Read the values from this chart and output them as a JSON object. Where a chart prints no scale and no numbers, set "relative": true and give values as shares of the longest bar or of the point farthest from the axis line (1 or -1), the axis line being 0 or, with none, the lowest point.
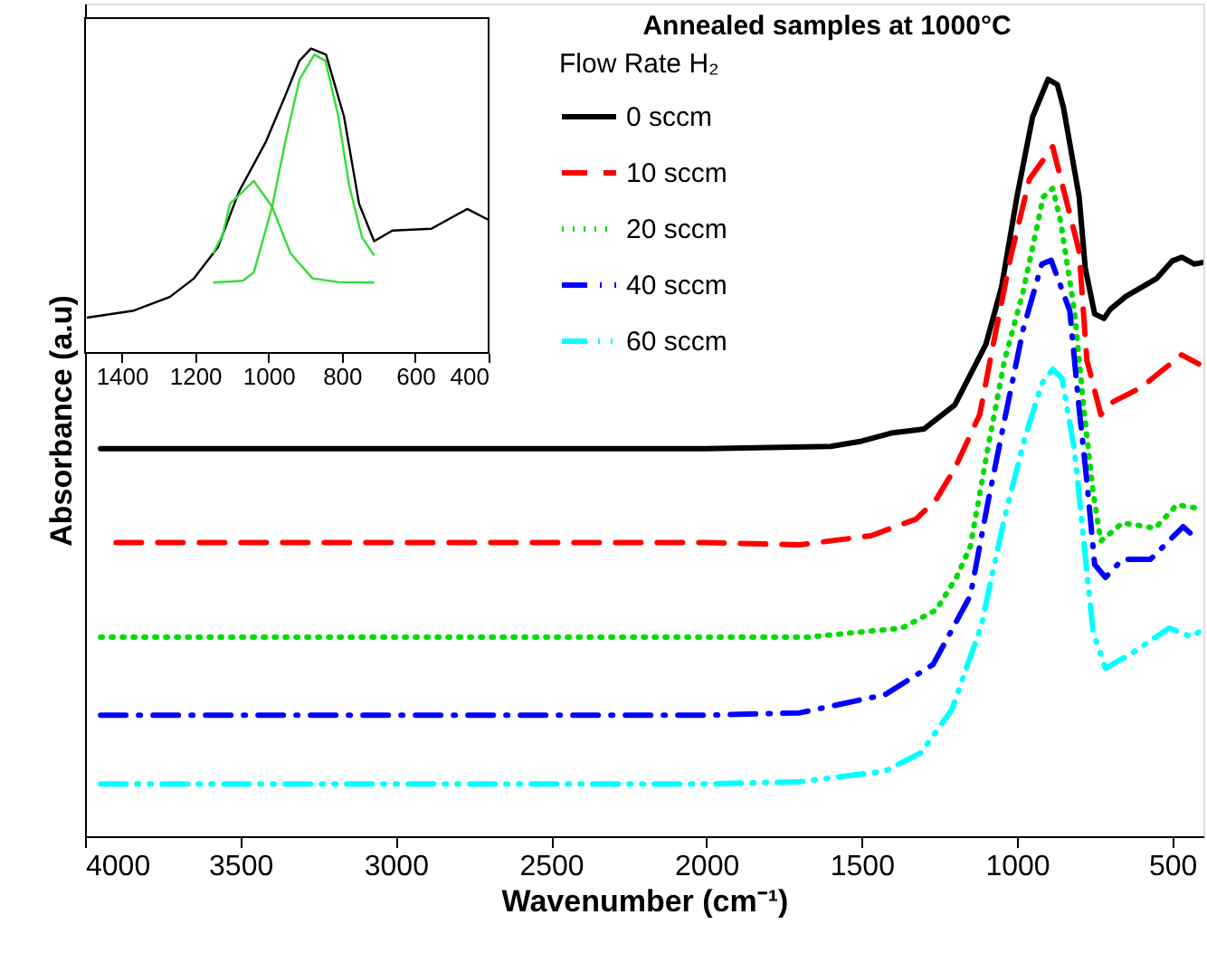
{
  "chart_data": [
    {
      "type": "line",
      "title": "Annealed samples at 1000°C",
      "xlabel": "Wavenumber (cm⁻¹)",
      "ylabel": "Absorbance (a.u)",
      "legend_title": "Flow Rate H₂",
      "legend": "top right",
      "relative": true,
      "tick_labels": "x",
      "xlim": [
        4000,
        400
      ],
      "xticks": [
        4000,
        3500,
        3000,
        2500,
        2000,
        1500,
        1000,
        500
      ],
      "grid": false,
      "series": [
        {
          "name": "0 sccm",
          "color": "#000000",
          "line_style": "solid",
          "x": [
            3950,
            3000,
            2000,
            1600,
            1500,
            1400,
            1300,
            1200,
            1100,
            1050,
            1000,
            950,
            900,
            870,
            850,
            800,
            780,
            750,
            720,
            700,
            650,
            600,
            550,
            500,
            470,
            430,
            400
          ],
          "values": [
            0.512,
            0.512,
            0.512,
            0.515,
            0.522,
            0.533,
            0.538,
            0.57,
            0.65,
            0.725,
            0.845,
            0.95,
            1.0,
            0.993,
            0.962,
            0.845,
            0.75,
            0.69,
            0.684,
            0.696,
            0.713,
            0.725,
            0.737,
            0.76,
            0.765,
            0.756,
            0.758
          ]
        },
        {
          "name": "10 sccm",
          "color": "#ff0000",
          "line_style": "dashed",
          "x": [
            3900,
            3000,
            2000,
            1700,
            1470,
            1325,
            1260,
            1200,
            1120,
            1075,
            1020,
            960,
            885,
            800,
            775,
            730,
            690,
            600,
            470,
            415
          ],
          "values": [
            0.388,
            0.388,
            0.388,
            0.385,
            0.397,
            0.419,
            0.445,
            0.486,
            0.557,
            0.653,
            0.766,
            0.868,
            0.911,
            0.773,
            0.629,
            0.557,
            0.574,
            0.593,
            0.636,
            0.624
          ]
        },
        {
          "name": "20 sccm",
          "color": "#00dd00",
          "line_style": "dotted",
          "x": [
            3950,
            3000,
            2000,
            1675,
            1370,
            1260,
            1195,
            1150,
            1095,
            1040,
            980,
            915,
            885,
            860,
            815,
            785,
            755,
            730,
            660,
            555,
            485,
            415
          ],
          "values": [
            0.263,
            0.263,
            0.263,
            0.263,
            0.275,
            0.299,
            0.342,
            0.383,
            0.51,
            0.629,
            0.72,
            0.845,
            0.856,
            0.813,
            0.694,
            0.565,
            0.455,
            0.39,
            0.414,
            0.407,
            0.438,
            0.433
          ]
        },
        {
          "name": "40 sccm",
          "color": "#0000ff",
          "line_style": "dashdot",
          "x": [
            3950,
            3000,
            2000,
            1700,
            1425,
            1270,
            1150,
            1095,
            1040,
            980,
            920,
            890,
            830,
            800,
            775,
            750,
            715,
            660,
            570,
            465,
            415
          ],
          "values": [
            0.16,
            0.16,
            0.16,
            0.163,
            0.187,
            0.227,
            0.318,
            0.438,
            0.55,
            0.67,
            0.756,
            0.761,
            0.694,
            0.565,
            0.469,
            0.359,
            0.342,
            0.366,
            0.366,
            0.409,
            0.39
          ]
        },
        {
          "name": "60 sccm",
          "color": "#00ffff",
          "line_style": "dashdotdot",
          "x": [
            3950,
            3000,
            2000,
            1700,
            1425,
            1310,
            1210,
            1115,
            1040,
            975,
            920,
            885,
            855,
            815,
            785,
            755,
            715,
            630,
            510,
            435,
            415
          ],
          "values": [
            0.069,
            0.069,
            0.069,
            0.072,
            0.086,
            0.11,
            0.167,
            0.278,
            0.421,
            0.526,
            0.598,
            0.617,
            0.605,
            0.51,
            0.39,
            0.27,
            0.222,
            0.242,
            0.275,
            0.263,
            0.27
          ]
        }
      ]
    },
    {
      "type": "line",
      "relative": true,
      "tick_labels": "x",
      "xlim": [
        1500,
        400
      ],
      "xticks": [
        1400,
        1200,
        1000,
        800,
        600,
        400
      ],
      "grid": false,
      "series": [
        {
          "color": "#000000",
          "x": [
            1495,
            1367,
            1269,
            1203,
            1138,
            1080,
            1007,
            957,
            916,
            884,
            843,
            794,
            753,
            712,
            662,
            556,
            458,
            400
          ],
          "values": [
            0.116,
            0.139,
            0.184,
            0.245,
            0.347,
            0.531,
            0.694,
            0.837,
            0.959,
            1.0,
            0.98,
            0.776,
            0.49,
            0.367,
            0.402,
            0.408,
            0.473,
            0.437
          ]
        },
        {
          "color": "#33dd33",
          "x": [
            1151,
            1125,
            1105,
            1040,
            990,
            940,
            880,
            810,
            712
          ],
          "values": [
            0.327,
            0.388,
            0.49,
            0.565,
            0.48,
            0.327,
            0.245,
            0.233,
            0.231
          ]
        },
        {
          "color": "#33dd33",
          "x": [
            1151,
            1070,
            1040,
            990,
            955,
            915,
            875,
            845,
            810,
            780,
            745,
            712
          ],
          "values": [
            0.231,
            0.237,
            0.265,
            0.48,
            0.69,
            0.9,
            0.98,
            0.96,
            0.78,
            0.55,
            0.38,
            0.32
          ]
        }
      ]
    }
  ]
}
